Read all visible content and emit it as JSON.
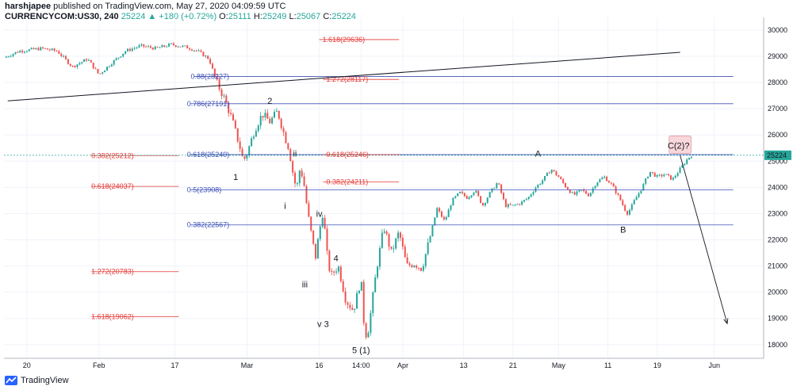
{
  "header": {
    "author": "harshjapee",
    "published": "published on TradingView.com, May 27, 2020 04:09:59 UTC",
    "symbol": "CURRENCYCOM:US30, 240",
    "last": "25224",
    "change": "+180 (+0.72%)",
    "o_label": "O:",
    "o": "25111",
    "h_label": "H:",
    "h": "25249",
    "l_label": "L:",
    "l": "25067",
    "c_label": "C:",
    "c": "25224"
  },
  "footer": {
    "brand": "TradingView"
  },
  "colors": {
    "up": "#26a69a",
    "down": "#ef5350",
    "fib_red": "#e53935",
    "fib_blue": "#3f51b5",
    "price_tag": "#26a69a"
  },
  "chart_data": {
    "type": "candlestick",
    "y_range": [
      17600,
      30300
    ],
    "y_ticks": [
      18000,
      19000,
      20000,
      21000,
      22000,
      23000,
      24000,
      25000,
      26000,
      27000,
      28000,
      29000,
      30000
    ],
    "x_ticks": [
      "20",
      "Feb",
      "17",
      "Mar",
      "16",
      "14:00",
      "Apr",
      "13",
      "21",
      "May",
      "11",
      "19",
      "Jun"
    ],
    "last_price_label": "25224",
    "price_path": [
      [
        0,
        28950
      ],
      [
        0.02,
        29200
      ],
      [
        0.05,
        29300
      ],
      [
        0.07,
        29200
      ],
      [
        0.09,
        28600
      ],
      [
        0.11,
        28900
      ],
      [
        0.125,
        28300
      ],
      [
        0.14,
        28700
      ],
      [
        0.16,
        29200
      ],
      [
        0.18,
        29400
      ],
      [
        0.2,
        29300
      ],
      [
        0.22,
        29450
      ],
      [
        0.24,
        29350
      ],
      [
        0.255,
        29200
      ],
      [
        0.27,
        28900
      ],
      [
        0.28,
        28000
      ],
      [
        0.29,
        27400
      ],
      [
        0.3,
        26600
      ],
      [
        0.31,
        25600
      ],
      [
        0.315,
        25000
      ],
      [
        0.32,
        25300
      ],
      [
        0.33,
        26200
      ],
      [
        0.34,
        26800
      ],
      [
        0.35,
        26500
      ],
      [
        0.36,
        26900
      ],
      [
        0.37,
        25900
      ],
      [
        0.375,
        25500
      ],
      [
        0.38,
        24600
      ],
      [
        0.385,
        23900
      ],
      [
        0.39,
        24800
      ],
      [
        0.395,
        24100
      ],
      [
        0.4,
        23000
      ],
      [
        0.41,
        21300
      ],
      [
        0.415,
        22300
      ],
      [
        0.42,
        23100
      ],
      [
        0.425,
        21500
      ],
      [
        0.43,
        20600
      ],
      [
        0.44,
        21000
      ],
      [
        0.45,
        19700
      ],
      [
        0.46,
        19300
      ],
      [
        0.47,
        20500
      ],
      [
        0.475,
        18300
      ],
      [
        0.48,
        18600
      ],
      [
        0.49,
        20800
      ],
      [
        0.5,
        22500
      ],
      [
        0.51,
        21500
      ],
      [
        0.52,
        22300
      ],
      [
        0.53,
        21000
      ],
      [
        0.54,
        21100
      ],
      [
        0.55,
        20900
      ],
      [
        0.56,
        22000
      ],
      [
        0.57,
        23200
      ],
      [
        0.58,
        22700
      ],
      [
        0.59,
        23500
      ],
      [
        0.6,
        23800
      ],
      [
        0.61,
        23600
      ],
      [
        0.62,
        23900
      ],
      [
        0.63,
        23300
      ],
      [
        0.64,
        23800
      ],
      [
        0.65,
        24200
      ],
      [
        0.66,
        23300
      ],
      [
        0.67,
        23300
      ],
      [
        0.68,
        23400
      ],
      [
        0.69,
        23600
      ],
      [
        0.7,
        24000
      ],
      [
        0.71,
        24300
      ],
      [
        0.72,
        24700
      ],
      [
        0.73,
        24400
      ],
      [
        0.74,
        24000
      ],
      [
        0.75,
        23700
      ],
      [
        0.76,
        23900
      ],
      [
        0.77,
        23700
      ],
      [
        0.78,
        24200
      ],
      [
        0.79,
        24400
      ],
      [
        0.8,
        24100
      ],
      [
        0.81,
        23600
      ],
      [
        0.82,
        23000
      ],
      [
        0.825,
        23200
      ],
      [
        0.83,
        23500
      ],
      [
        0.84,
        24000
      ],
      [
        0.85,
        24600
      ],
      [
        0.86,
        24400
      ],
      [
        0.87,
        24500
      ],
      [
        0.88,
        24300
      ],
      [
        0.89,
        24700
      ],
      [
        0.9,
        25100
      ],
      [
        0.905,
        25224
      ]
    ],
    "fib_levels": [
      {
        "label": "1.618(29636)",
        "price": 29636,
        "color": "red",
        "x0": 0.415,
        "x1": 0.52
      },
      {
        "label": "0.88(28227)",
        "price": 28227,
        "color": "blue",
        "x0": 0.25,
        "x1": 0.96
      },
      {
        "label": "1.272(28117)",
        "price": 28117,
        "color": "red",
        "x0": 0.42,
        "x1": 0.52
      },
      {
        "label": "0.786(27191)",
        "price": 27191,
        "color": "blue",
        "x0": 0.245,
        "x1": 0.96
      },
      {
        "label": "0.382(25212)",
        "price": 25212,
        "color": "red",
        "x0": 0.115,
        "x1": 0.23
      },
      {
        "label": "0.618(25249)",
        "price": 25249,
        "color": "blue",
        "x0": 0.245,
        "x1": 0.96
      },
      {
        "label": "0.618(25246)",
        "price": 25246,
        "color": "red",
        "x0": 0.42,
        "x1": 0.52
      },
      {
        "label": "0.382(24211)",
        "price": 24211,
        "color": "red",
        "x0": 0.42,
        "x1": 0.52
      },
      {
        "label": "0.618(24037)",
        "price": 24037,
        "color": "red",
        "x0": 0.115,
        "x1": 0.23
      },
      {
        "label": "0.5(23908)",
        "price": 23908,
        "color": "blue",
        "x0": 0.245,
        "x1": 0.96
      },
      {
        "label": "0.382(22567)",
        "price": 22567,
        "color": "blue",
        "x0": 0.245,
        "x1": 0.96
      },
      {
        "label": "1.272(20783)",
        "price": 20783,
        "color": "red",
        "x0": 0.115,
        "x1": 0.23
      },
      {
        "label": "1.618(19062)",
        "price": 19062,
        "color": "red",
        "x0": 0.115,
        "x1": 0.23
      }
    ],
    "wave_labels": [
      {
        "text": "1",
        "x": 0.305,
        "price": 24400
      },
      {
        "text": "2",
        "x": 0.35,
        "price": 27300
      },
      {
        "text": "ii",
        "x": 0.383,
        "price": 25300
      },
      {
        "text": "i",
        "x": 0.37,
        "price": 23300
      },
      {
        "text": "iv",
        "x": 0.415,
        "price": 23000
      },
      {
        "text": "iii",
        "x": 0.396,
        "price": 20300
      },
      {
        "text": "4",
        "x": 0.437,
        "price": 21300
      },
      {
        "text": "v 3",
        "x": 0.42,
        "price": 18800
      },
      {
        "text": "5 (1)",
        "x": 0.47,
        "price": 17800
      },
      {
        "text": "A",
        "x": 0.703,
        "price": 25300
      },
      {
        "text": "B",
        "x": 0.815,
        "price": 22400
      },
      {
        "text": "C(2)?",
        "x": 0.888,
        "price": 25600
      }
    ],
    "trend_line": {
      "x0": 0.005,
      "p0": 27300,
      "x1": 0.89,
      "p1": 29150
    },
    "projection_arrow": {
      "x0": 0.89,
      "p0": 25224,
      "x1": 0.952,
      "p1": 18800
    }
  }
}
